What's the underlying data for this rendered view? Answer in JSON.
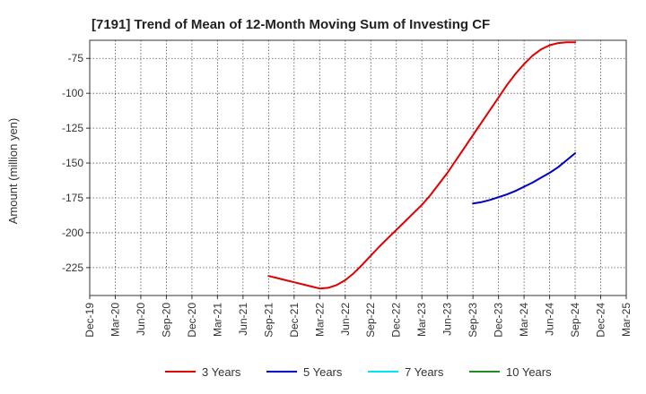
{
  "chart_data": {
    "type": "line",
    "title": "[7191]  Trend of Mean of 12-Month Moving Sum of Investing CF",
    "ylabel": "Amount (million yen)",
    "xlabel": "",
    "x_ticks": [
      "Dec-19",
      "Mar-20",
      "Jun-20",
      "Sep-20",
      "Dec-20",
      "Mar-21",
      "Jun-21",
      "Sep-21",
      "Dec-21",
      "Mar-22",
      "Jun-22",
      "Sep-22",
      "Dec-22",
      "Mar-23",
      "Jun-23",
      "Sep-23",
      "Dec-23",
      "Mar-24",
      "Jun-24",
      "Sep-24",
      "Dec-24",
      "Mar-25"
    ],
    "y_ticks": [
      -225,
      -200,
      -175,
      -150,
      -125,
      -100,
      -75
    ],
    "ylim": [
      -245,
      -62
    ],
    "grid": true,
    "legend_position": "bottom",
    "series": [
      {
        "name": "3 Years",
        "color": "#e00000",
        "x": [
          "Sep-21",
          "Oct-21",
          "Nov-21",
          "Dec-21",
          "Jan-22",
          "Feb-22",
          "Mar-22",
          "Apr-22",
          "May-22",
          "Jun-22",
          "Jul-22",
          "Aug-22",
          "Sep-22",
          "Oct-22",
          "Nov-22",
          "Dec-22",
          "Jan-23",
          "Feb-23",
          "Mar-23",
          "Apr-23",
          "May-23",
          "Jun-23",
          "Jul-23",
          "Aug-23",
          "Sep-23",
          "Oct-23",
          "Nov-23",
          "Dec-23",
          "Jan-24",
          "Feb-24",
          "Mar-24",
          "Apr-24",
          "May-24",
          "Jun-24",
          "Jul-24",
          "Aug-24",
          "Sep-24"
        ],
        "values": [
          -231,
          -232.5,
          -234,
          -235.5,
          -237,
          -238.5,
          -240,
          -239.5,
          -237.5,
          -234,
          -229,
          -223,
          -216.5,
          -210,
          -204,
          -198,
          -192,
          -186,
          -180,
          -173,
          -165,
          -157,
          -148,
          -139,
          -130,
          -121,
          -112,
          -103,
          -94,
          -86,
          -79,
          -73,
          -68.5,
          -65.5,
          -64,
          -63.5,
          -63.5
        ]
      },
      {
        "name": "5 Years",
        "color": "#0000cc",
        "x": [
          "Sep-23",
          "Oct-23",
          "Nov-23",
          "Dec-23",
          "Jan-24",
          "Feb-24",
          "Mar-24",
          "Apr-24",
          "May-24",
          "Jun-24",
          "Jul-24",
          "Aug-24",
          "Sep-24"
        ],
        "values": [
          -179,
          -178,
          -176.5,
          -174.5,
          -172.5,
          -170,
          -167,
          -164,
          -160.5,
          -157,
          -153,
          -148,
          -143
        ]
      },
      {
        "name": "7 Years",
        "color": "#00e5ee",
        "x": [],
        "values": []
      },
      {
        "name": "10 Years",
        "color": "#228b22",
        "x": [],
        "values": []
      }
    ]
  }
}
